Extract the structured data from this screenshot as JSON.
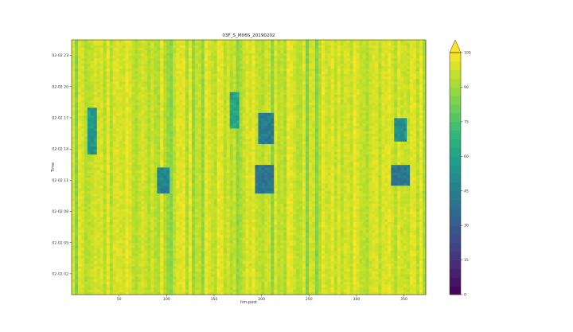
{
  "chart_data": {
    "type": "heatmap",
    "title": "03F_S_M06S_20190202",
    "xlabel": "hm-post",
    "ylabel": "Time",
    "xlim": [
      0,
      373
    ],
    "ylim_hours": [
      0,
      24.5
    ],
    "x_ticks": [
      50,
      100,
      150,
      200,
      250,
      300,
      350
    ],
    "y_ticks": [
      {
        "hour": 2,
        "label": "02-02 02"
      },
      {
        "hour": 5,
        "label": "02-02 05"
      },
      {
        "hour": 8,
        "label": "02-02 08"
      },
      {
        "hour": 11,
        "label": "02-02 11"
      },
      {
        "hour": 14,
        "label": "02-02 14"
      },
      {
        "hour": 17,
        "label": "02-02 17"
      },
      {
        "hour": 20,
        "label": "02-02 20"
      },
      {
        "hour": 23,
        "label": "02-02 23"
      }
    ],
    "colorbar": {
      "min": 0,
      "max": 105,
      "ticks": [
        0,
        15,
        30,
        45,
        60,
        75,
        90,
        105
      ],
      "extend": "max",
      "colormap": "viridis"
    },
    "baseline_value": 97,
    "low_speed_regions": [
      {
        "x": [
          18,
          26
        ],
        "hours": [
          13.5,
          18.0
        ],
        "value": 55
      },
      {
        "x": [
          90,
          102
        ],
        "hours": [
          9.8,
          12.2
        ],
        "value": 48
      },
      {
        "x": [
          168,
          176
        ],
        "hours": [
          16.0,
          19.5
        ],
        "value": 62
      },
      {
        "x": [
          197,
          212
        ],
        "hours": [
          14.5,
          17.5
        ],
        "value": 45
      },
      {
        "x": [
          193,
          212
        ],
        "hours": [
          9.8,
          12.5
        ],
        "value": 40
      },
      {
        "x": [
          340,
          352
        ],
        "hours": [
          14.8,
          17.0
        ],
        "value": 52
      },
      {
        "x": [
          338,
          355
        ],
        "hours": [
          10.5,
          12.5
        ],
        "value": 42
      }
    ]
  }
}
